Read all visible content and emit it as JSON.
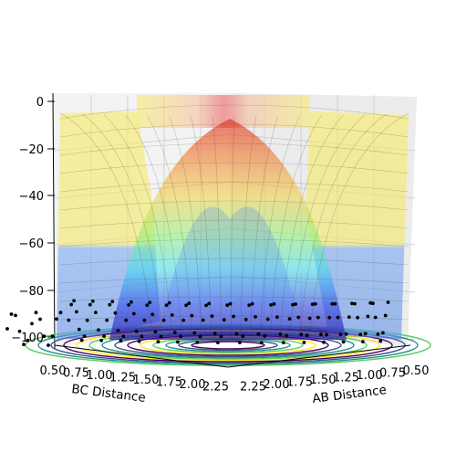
{
  "chart_data": {
    "type": "surface3d",
    "title": "",
    "xlabel": "AB Distance",
    "ylabel": "BC Distance",
    "zlabel": "",
    "x_ticks": [
      "0.50",
      "0.75",
      "1.00",
      "1.25",
      "1.50",
      "1.75",
      "2.00",
      "2.25"
    ],
    "y_ticks": [
      "0.50",
      "0.75",
      "1.00",
      "1.25",
      "1.50",
      "1.75",
      "2.00",
      "2.25"
    ],
    "z_ticks": [
      "0",
      "−20",
      "−40",
      "−60",
      "−80",
      "−100"
    ],
    "x_range": [
      0.5,
      2.4
    ],
    "y_range": [
      0.5,
      2.4
    ],
    "z_range": [
      -105,
      0
    ],
    "surface_colormap": "jet",
    "contour_colormap": "viridis",
    "grid": true,
    "trajectory": {
      "marker": "dot",
      "color": "#000000",
      "points_AB": [
        0.55,
        0.62,
        0.7,
        0.78,
        0.85,
        0.92,
        1.0,
        1.08,
        1.16,
        1.25,
        1.35,
        1.45,
        1.55,
        1.65,
        1.75,
        1.85,
        1.95,
        2.05,
        2.15,
        2.25
      ],
      "points_BC": [
        2.3,
        2.2,
        2.1,
        2.0,
        1.9,
        1.8,
        1.7,
        1.6,
        1.5,
        1.4,
        1.3,
        1.2,
        1.1,
        1.0,
        0.92,
        0.84,
        0.76,
        0.68,
        0.62,
        0.56
      ]
    }
  }
}
